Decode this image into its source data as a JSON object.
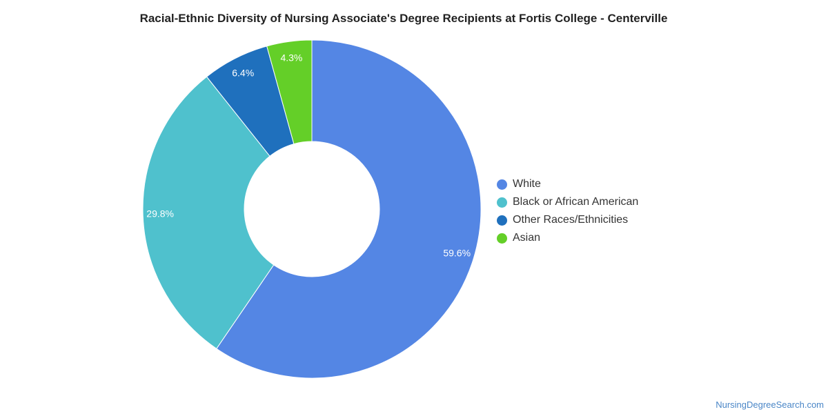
{
  "chart_data": {
    "type": "pie",
    "title": "Racial-Ethnic Diversity of Nursing Associate's Degree Recipients at Fortis College - Centerville",
    "categories": [
      "White",
      "Black or African American",
      "Other Races/Ethnicities",
      "Asian"
    ],
    "values": [
      59.6,
      29.8,
      6.4,
      4.3
    ],
    "labels": [
      "59.6%",
      "29.8%",
      "6.4%",
      "4.3%"
    ],
    "colors": [
      "#5486e4",
      "#4fc1cd",
      "#1f70bd",
      "#64cf28"
    ],
    "donut": true,
    "legend_position": "right"
  },
  "source": "NursingDegreeSearch.com"
}
